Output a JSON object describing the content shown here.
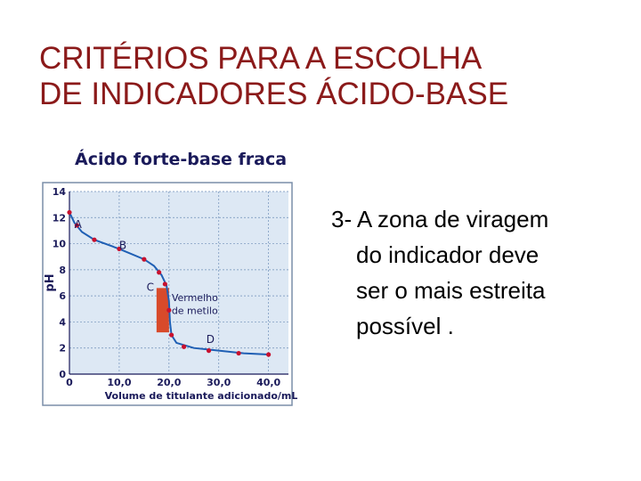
{
  "slide": {
    "title_lines": [
      "CRITÉRIOS PARA A ESCOLHA",
      "DE INDICADORES ÁCIDO-BASE"
    ],
    "body_lines": [
      "3- A zona de viragem",
      "do indicador deve",
      "ser o mais estreita",
      "possível ."
    ]
  },
  "colors": {
    "title": "#8b1a1a",
    "curve": "#1f5fb4",
    "points": "#c8102e",
    "indicator_zone": "#d84a2a",
    "plot_background": "#dde8f4",
    "grid": "#6f8fb8",
    "axis_text": "#1a1a5a"
  },
  "chart_data": {
    "type": "line",
    "title": "Ácido forte-base fraca",
    "xlabel": "Volume de titulante adicionado/mL",
    "ylabel": "pH",
    "xlim": [
      0,
      44
    ],
    "ylim": [
      0,
      14
    ],
    "xticks": [
      0,
      10,
      20,
      30,
      40
    ],
    "xtick_labels": [
      "0",
      "10,0",
      "20,0",
      "30,0",
      "40,0"
    ],
    "yticks": [
      0,
      2,
      4,
      6,
      8,
      10,
      12,
      14
    ],
    "ytick_labels": [
      "0",
      "2",
      "4",
      "6",
      "8",
      "10",
      "12",
      "14"
    ],
    "grid": true,
    "series": [
      {
        "curve": [
          [
            0,
            12.4
          ],
          [
            1,
            11.6
          ],
          [
            2.5,
            10.9
          ],
          [
            5,
            10.3
          ],
          [
            10,
            9.6
          ],
          [
            15,
            8.8
          ],
          [
            17,
            8.3
          ],
          [
            18.5,
            7.6
          ],
          [
            19.5,
            6.8
          ],
          [
            20,
            5.6
          ],
          [
            20.2,
            4.0
          ],
          [
            20.5,
            3.0
          ],
          [
            21.5,
            2.4
          ],
          [
            25,
            2.0
          ],
          [
            30,
            1.8
          ],
          [
            35,
            1.6
          ],
          [
            40,
            1.5
          ]
        ],
        "markers": [
          [
            0,
            12.4
          ],
          [
            1.5,
            11.4
          ],
          [
            5,
            10.3
          ],
          [
            10,
            9.6
          ],
          [
            15,
            8.8
          ],
          [
            18,
            7.8
          ],
          [
            19.2,
            6.9
          ],
          [
            20,
            4.9
          ],
          [
            20.5,
            3.0
          ],
          [
            23,
            2.1
          ],
          [
            28,
            1.8
          ],
          [
            34,
            1.6
          ],
          [
            40,
            1.5
          ]
        ]
      }
    ],
    "point_labels": [
      {
        "text": "A",
        "x": 1,
        "y": 11.2
      },
      {
        "text": "B",
        "x": 10,
        "y": 9.6
      },
      {
        "text": "C",
        "x": 15.5,
        "y": 6.4
      },
      {
        "text": "D",
        "x": 27.5,
        "y": 2.4
      }
    ],
    "indicator": {
      "label_lines": [
        "Vermelho",
        "de metilo"
      ],
      "ph_range": [
        3.2,
        6.6
      ],
      "x_range": [
        17.5,
        20
      ]
    }
  }
}
